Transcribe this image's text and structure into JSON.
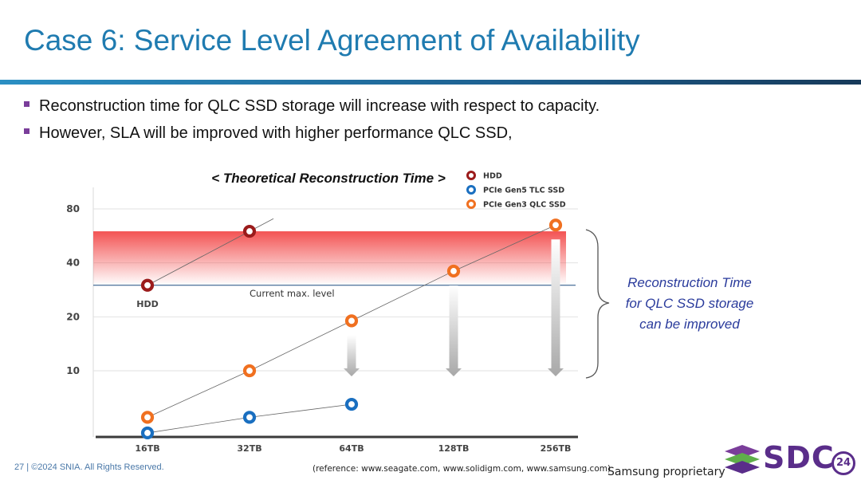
{
  "slide": {
    "title": "Case 6: Service Level Agreement of Availability",
    "bullets": [
      "Reconstruction time for QLC SSD storage will increase with respect to capacity.",
      "However, SLA will be improved with higher performance QLC SSD,"
    ]
  },
  "chart_data": {
    "type": "line",
    "title": "< Theoretical Reconstruction Time >",
    "categories": [
      "16TB",
      "32TB",
      "64TB",
      "128TB",
      "256TB"
    ],
    "yticks": [
      10,
      20,
      40,
      80
    ],
    "y_scale": "log",
    "series": [
      {
        "name": "HDD",
        "color": "#9b1b1b",
        "values": [
          30,
          60,
          null,
          null,
          null
        ]
      },
      {
        "name": "PCIe Gen5 TLC SSD",
        "color": "#1a6fc0",
        "values": [
          4.5,
          5.5,
          6.5,
          null,
          null
        ]
      },
      {
        "name": "PCIe Gen3 QLC SSD",
        "color": "#f07020",
        "values": [
          5.5,
          10,
          19,
          36,
          65
        ]
      }
    ],
    "point_labels": {
      "hdd": "HDD"
    },
    "reference_line": {
      "label": "Current max. level",
      "value": 30
    },
    "sla_band_color": "#f03a3a",
    "annotation": "Reconstruction Time for QLC SSD storage can be improved",
    "reference_note": "(reference: www.seagate.com, www.solidigm.com, www.samsung.com)"
  },
  "footer": {
    "copyright": "27 | ©2024 SNIA. All Rights Reserved.",
    "proprietary": "Samsung proprietary",
    "logo_text": "SDC",
    "logo_badge": "24"
  }
}
